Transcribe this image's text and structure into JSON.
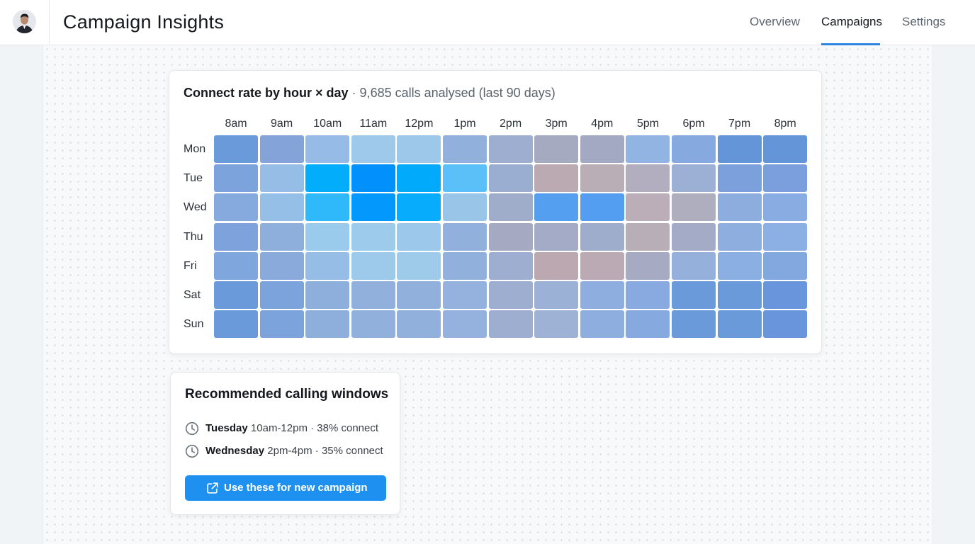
{
  "header": {
    "title": "Campaign Insights",
    "tabs": [
      {
        "label": "Overview",
        "active": false
      },
      {
        "label": "Campaigns",
        "active": true
      },
      {
        "label": "Settings",
        "active": false
      }
    ],
    "accent": "#2e86de"
  },
  "heatmap": {
    "title_strong": "Connect rate by hour × day",
    "title_rest": " · 9,685 calls analysed (last 90 days)"
  },
  "chart_data": {
    "type": "heatmap",
    "title": "Connect rate by hour × day",
    "x": [
      "8am",
      "9am",
      "10am",
      "11am",
      "12pm",
      "1pm",
      "2pm",
      "3pm",
      "4pm",
      "5pm",
      "6pm",
      "7pm",
      "8pm"
    ],
    "y": [
      "Mon",
      "Tue",
      "Wed",
      "Thu",
      "Fri",
      "Sat",
      "Sun"
    ],
    "colors": [
      [
        "#6b9ada",
        "#84a3d8",
        "#95bbe6",
        "#9ec9ea",
        "#9ec8e9",
        "#92b0dc",
        "#9eaed0",
        "#a6aac0",
        "#a3a9c2",
        "#92b4e2",
        "#86a9e0",
        "#6595d9",
        "#6595d9"
      ],
      [
        "#7da3dc",
        "#95bde6",
        "#02aefc",
        "#0291fc",
        "#02aafc",
        "#5bc0f7",
        "#9aaed2",
        "#bcaab2",
        "#b9adb6",
        "#b2aebf",
        "#9cb0d6",
        "#7ba0dc",
        "#7b9fdc"
      ],
      [
        "#86a9de",
        "#96bfe8",
        "#2fb9fb",
        "#0398fc",
        "#07acfc",
        "#99c6e8",
        "#9fadcb",
        "#559ff0",
        "#539ef0",
        "#bbaeb8",
        "#aeaebf",
        "#8eaddf",
        "#89ade2"
      ],
      [
        "#7ea2dc",
        "#8eaedc",
        "#9bcbec",
        "#9dcbeb",
        "#9cc9eb",
        "#92b0dc",
        "#a6a9c2",
        "#a3abc6",
        "#9eadcb",
        "#b7aeb8",
        "#a4abc6",
        "#8eaedf",
        "#8cb0e3"
      ],
      [
        "#80a6de",
        "#8aaadc",
        "#95bde6",
        "#9dcaea",
        "#9fcbeb",
        "#92b0dc",
        "#9eaed0",
        "#bca8b0",
        "#bba9b3",
        "#a6aac2",
        "#96b0dc",
        "#8baee3",
        "#83a8e0"
      ],
      [
        "#6b9ada",
        "#7da3dc",
        "#8eaedc",
        "#92b0dc",
        "#92b0dc",
        "#94b2dd",
        "#9eaed0",
        "#9bb2d6",
        "#8eaedf",
        "#88aae0",
        "#6b9ada",
        "#6b9ada",
        "#6895dc"
      ],
      [
        "#6b9ada",
        "#7da3dc",
        "#8eaedc",
        "#92b0dc",
        "#92b0dc",
        "#94b2dd",
        "#9eaed0",
        "#9eb2d6",
        "#8eaedf",
        "#86a9e0",
        "#6b9ada",
        "#6b9ada",
        "#6895dc"
      ]
    ]
  },
  "recommendations": {
    "title": "Recommended calling windows",
    "items": [
      {
        "day": "Tuesday",
        "detail": " 10am-12pm · 38% connect",
        "icon": "clock-icon"
      },
      {
        "day": "Wednesday",
        "detail": " 2pm-4pm · 35% connect",
        "icon": "clock-icon"
      }
    ],
    "cta_label": "Use these for new campaign",
    "cta_color": "#1e90f0"
  }
}
